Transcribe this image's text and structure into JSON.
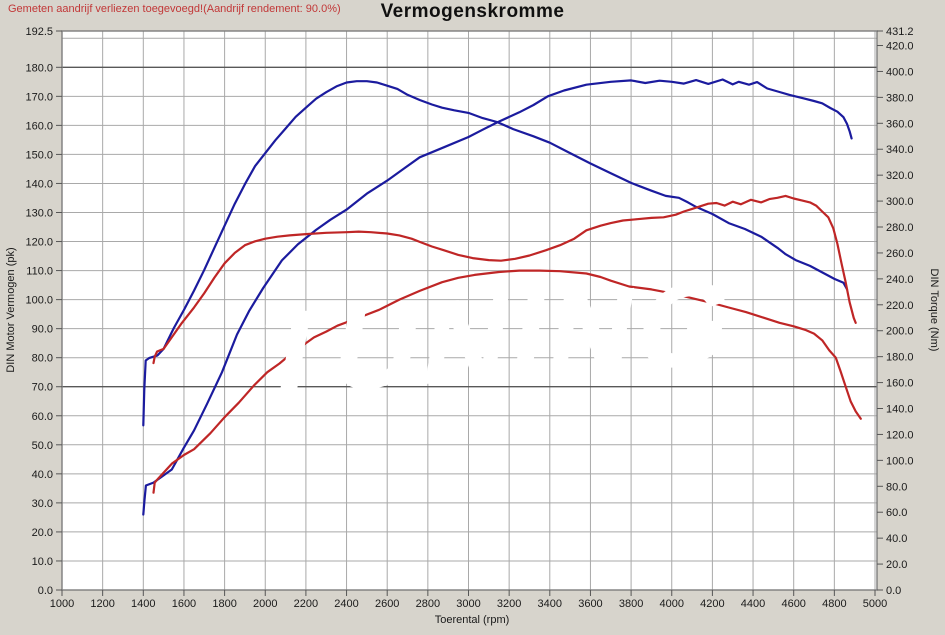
{
  "annotation": "Gemeten aandrijf verliezen toegevoegd!(Aandrijf rendement: 90.0%)",
  "title": "Vermogenskromme",
  "watermark_text": "TUNING",
  "colors": {
    "background": "#d7d4cc",
    "plot_background": "#ffffff",
    "grid": "#a9a9a9",
    "grid_dark": "#585858",
    "border": "#7d7d7d",
    "blue_curve": "#1b1b9e",
    "red_curve": "#bf2626",
    "annotation_red": "#c23838",
    "text": "#1a1a1a"
  },
  "chart_data": {
    "type": "line",
    "title": "Vermogenskromme",
    "xlabel": "Toerental (rpm)",
    "ylabel_left": "DIN Motor Vermogen (pk)",
    "ylabel_right": "DIN Torque (Nm)",
    "x_range": [
      1000,
      5000
    ],
    "y_left_range": [
      0,
      192.5
    ],
    "y_right_range": [
      0,
      431.2
    ],
    "x_ticks": [
      1000,
      1200,
      1400,
      1600,
      1800,
      2000,
      2200,
      2400,
      2600,
      2800,
      3000,
      3200,
      3400,
      3600,
      3800,
      4000,
      4200,
      4400,
      4600,
      4800,
      5000
    ],
    "y_left_ticks": [
      192.5,
      180,
      170,
      160,
      150,
      140,
      130,
      120,
      110,
      100,
      90,
      80,
      70,
      60,
      50,
      40,
      30,
      20,
      10,
      0
    ],
    "y_right_ticks": [
      431.2,
      420,
      400,
      380,
      360,
      340,
      320,
      300,
      280,
      260,
      240,
      220,
      200,
      180,
      160,
      140,
      120,
      100,
      80,
      60,
      40,
      20,
      0
    ],
    "grid": {
      "x_step_rpm": 200,
      "y_step_pk": 10,
      "dark_horizontal_lines_pk": [
        70,
        180
      ],
      "grid_on": true
    },
    "legend_position": "none",
    "series": [
      {
        "name": "blue-torque",
        "axis": "right",
        "unit": "Nm",
        "color": "#1b1b9e",
        "points": [
          [
            1400,
            127
          ],
          [
            1405,
            155
          ],
          [
            1412,
            177
          ],
          [
            1430,
            179
          ],
          [
            1470,
            181
          ],
          [
            1500,
            186
          ],
          [
            1550,
            202
          ],
          [
            1600,
            216
          ],
          [
            1650,
            231
          ],
          [
            1700,
            247
          ],
          [
            1750,
            264
          ],
          [
            1800,
            281
          ],
          [
            1850,
            298
          ],
          [
            1900,
            313
          ],
          [
            1950,
            327
          ],
          [
            2000,
            337
          ],
          [
            2050,
            347
          ],
          [
            2100,
            356
          ],
          [
            2150,
            365
          ],
          [
            2200,
            372
          ],
          [
            2250,
            379
          ],
          [
            2300,
            384
          ],
          [
            2350,
            388.5
          ],
          [
            2400,
            391.5
          ],
          [
            2450,
            392.5
          ],
          [
            2500,
            392.5
          ],
          [
            2550,
            391.5
          ],
          [
            2600,
            389
          ],
          [
            2650,
            386.5
          ],
          [
            2700,
            382
          ],
          [
            2760,
            378
          ],
          [
            2820,
            374.5
          ],
          [
            2870,
            372
          ],
          [
            2930,
            370
          ],
          [
            3000,
            368
          ],
          [
            3070,
            364
          ],
          [
            3140,
            361
          ],
          [
            3220,
            355.5
          ],
          [
            3320,
            350
          ],
          [
            3400,
            345
          ],
          [
            3500,
            337
          ],
          [
            3600,
            329
          ],
          [
            3700,
            321.5
          ],
          [
            3800,
            314
          ],
          [
            3900,
            308
          ],
          [
            3970,
            304
          ],
          [
            4035,
            302.5
          ],
          [
            4080,
            299
          ],
          [
            4120,
            295.5
          ],
          [
            4200,
            290
          ],
          [
            4280,
            283
          ],
          [
            4360,
            278.5
          ],
          [
            4440,
            272.5
          ],
          [
            4520,
            264
          ],
          [
            4560,
            259
          ],
          [
            4610,
            254.5
          ],
          [
            4680,
            250
          ],
          [
            4740,
            245
          ],
          [
            4800,
            240
          ],
          [
            4845,
            237
          ],
          [
            4862,
            232
          ]
        ]
      },
      {
        "name": "blue-power",
        "axis": "left",
        "unit": "pk",
        "color": "#1b1b9e",
        "points": [
          [
            1400,
            26
          ],
          [
            1406,
            31
          ],
          [
            1413,
            36
          ],
          [
            1450,
            37
          ],
          [
            1540,
            41.5
          ],
          [
            1600,
            49
          ],
          [
            1650,
            55
          ],
          [
            1713,
            64
          ],
          [
            1787,
            75
          ],
          [
            1861,
            88
          ],
          [
            1920,
            96
          ],
          [
            1990,
            104
          ],
          [
            2082,
            113.5
          ],
          [
            2160,
            119
          ],
          [
            2250,
            124
          ],
          [
            2320,
            127.5
          ],
          [
            2400,
            131
          ],
          [
            2500,
            136.5
          ],
          [
            2600,
            141
          ],
          [
            2680,
            145
          ],
          [
            2760,
            149
          ],
          [
            2880,
            152.5
          ],
          [
            3000,
            156
          ],
          [
            3070,
            158.5
          ],
          [
            3140,
            161
          ],
          [
            3250,
            164.5
          ],
          [
            3320,
            167
          ],
          [
            3390,
            170
          ],
          [
            3470,
            172
          ],
          [
            3580,
            174
          ],
          [
            3700,
            175
          ],
          [
            3800,
            175.5
          ],
          [
            3870,
            174.6
          ],
          [
            3940,
            175.4
          ],
          [
            4000,
            175
          ],
          [
            4060,
            174.4
          ],
          [
            4120,
            175.6
          ],
          [
            4180,
            174.3
          ],
          [
            4250,
            175.8
          ],
          [
            4300,
            174.1
          ],
          [
            4330,
            175
          ],
          [
            4380,
            174
          ],
          [
            4420,
            174.9
          ],
          [
            4470,
            172.7
          ],
          [
            4530,
            171.5
          ],
          [
            4580,
            170.5
          ],
          [
            4650,
            169.3
          ],
          [
            4700,
            168.4
          ],
          [
            4740,
            167.6
          ],
          [
            4780,
            166
          ],
          [
            4815,
            164.7
          ],
          [
            4845,
            162.8
          ],
          [
            4862,
            160.5
          ],
          [
            4875,
            158
          ],
          [
            4885,
            155.5
          ]
        ]
      },
      {
        "name": "red-torque",
        "axis": "right",
        "unit": "Nm",
        "color": "#bf2626",
        "points": [
          [
            1450,
            175
          ],
          [
            1456,
            180
          ],
          [
            1468,
            184
          ],
          [
            1500,
            186
          ],
          [
            1540,
            195
          ],
          [
            1590,
            206
          ],
          [
            1650,
            218
          ],
          [
            1700,
            229
          ],
          [
            1750,
            241
          ],
          [
            1800,
            252
          ],
          [
            1850,
            260
          ],
          [
            1900,
            266
          ],
          [
            1950,
            269
          ],
          [
            2000,
            271
          ],
          [
            2060,
            272.5
          ],
          [
            2120,
            273.5
          ],
          [
            2200,
            274.5
          ],
          [
            2300,
            275.5
          ],
          [
            2400,
            276
          ],
          [
            2460,
            276.5
          ],
          [
            2520,
            276
          ],
          [
            2600,
            275
          ],
          [
            2660,
            273.5
          ],
          [
            2720,
            271
          ],
          [
            2760,
            268.5
          ],
          [
            2820,
            265
          ],
          [
            2880,
            262
          ],
          [
            2950,
            258.5
          ],
          [
            3020,
            256
          ],
          [
            3100,
            254.5
          ],
          [
            3160,
            254
          ],
          [
            3230,
            255.5
          ],
          [
            3300,
            258
          ],
          [
            3380,
            262
          ],
          [
            3450,
            266
          ],
          [
            3520,
            271
          ],
          [
            3580,
            277.5
          ],
          [
            3650,
            281
          ],
          [
            3700,
            283
          ],
          [
            3760,
            285
          ],
          [
            3830,
            286
          ],
          [
            3900,
            287
          ],
          [
            3960,
            287.5
          ],
          [
            4020,
            289.5
          ],
          [
            4060,
            292
          ],
          [
            4100,
            294
          ],
          [
            4140,
            296
          ],
          [
            4180,
            298
          ],
          [
            4220,
            298.5
          ],
          [
            4260,
            296.5
          ],
          [
            4300,
            299.5
          ],
          [
            4340,
            297.5
          ],
          [
            4390,
            301
          ],
          [
            4440,
            299
          ],
          [
            4480,
            301.5
          ],
          [
            4520,
            302.5
          ],
          [
            4560,
            304
          ],
          [
            4600,
            302
          ],
          [
            4640,
            300.5
          ],
          [
            4680,
            299
          ],
          [
            4710,
            296.5
          ],
          [
            4740,
            292
          ],
          [
            4770,
            287.5
          ],
          [
            4795,
            279
          ],
          [
            4815,
            267
          ],
          [
            4835,
            252
          ],
          [
            4855,
            238
          ],
          [
            4875,
            222
          ],
          [
            4895,
            210
          ],
          [
            4905,
            206
          ]
        ]
      },
      {
        "name": "red-power",
        "axis": "left",
        "unit": "pk",
        "color": "#bf2626",
        "points": [
          [
            1450,
            33.5
          ],
          [
            1456,
            37
          ],
          [
            1475,
            38.5
          ],
          [
            1540,
            43.5
          ],
          [
            1600,
            46.5
          ],
          [
            1650,
            48.5
          ],
          [
            1730,
            54
          ],
          [
            1800,
            59.5
          ],
          [
            1870,
            64.5
          ],
          [
            1945,
            70.5
          ],
          [
            2010,
            75
          ],
          [
            2070,
            78
          ],
          [
            2130,
            81.5
          ],
          [
            2180,
            84
          ],
          [
            2240,
            87
          ],
          [
            2300,
            89
          ],
          [
            2355,
            91
          ],
          [
            2450,
            93.5
          ],
          [
            2560,
            96.5
          ],
          [
            2660,
            100
          ],
          [
            2760,
            103
          ],
          [
            2870,
            106
          ],
          [
            2950,
            107.5
          ],
          [
            3030,
            108.5
          ],
          [
            3150,
            109.5
          ],
          [
            3250,
            110
          ],
          [
            3350,
            110
          ],
          [
            3450,
            109.8
          ],
          [
            3580,
            109
          ],
          [
            3650,
            107.8
          ],
          [
            3700,
            106.5
          ],
          [
            3790,
            104.5
          ],
          [
            3900,
            103.5
          ],
          [
            3990,
            102.3
          ],
          [
            4100,
            100.5
          ],
          [
            4200,
            98.8
          ],
          [
            4280,
            97.3
          ],
          [
            4365,
            95.7
          ],
          [
            4450,
            93.8
          ],
          [
            4530,
            92
          ],
          [
            4600,
            90.8
          ],
          [
            4660,
            89.5
          ],
          [
            4700,
            88.3
          ],
          [
            4740,
            86
          ],
          [
            4775,
            82.5
          ],
          [
            4807,
            80
          ],
          [
            4830,
            75.5
          ],
          [
            4856,
            70
          ],
          [
            4880,
            65
          ],
          [
            4905,
            61.5
          ],
          [
            4930,
            59
          ]
        ]
      }
    ]
  }
}
